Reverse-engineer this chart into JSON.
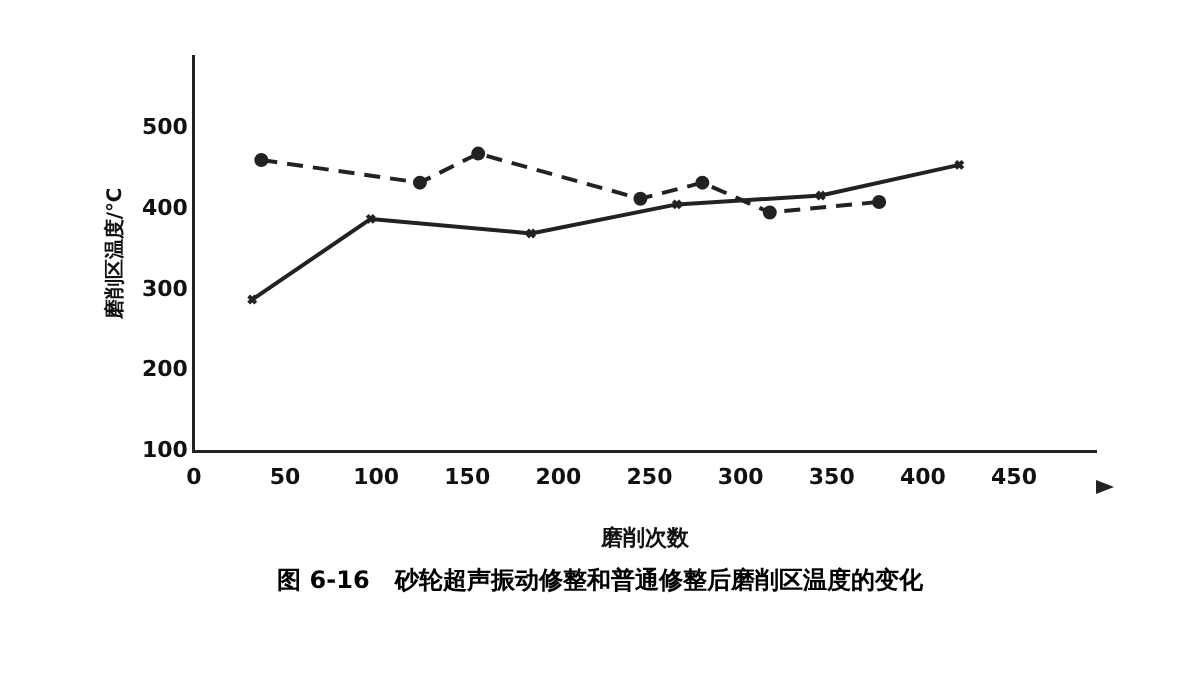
{
  "chart_data": {
    "type": "line",
    "xlabel": "磨削次数",
    "ylabel": "磨削区温度/℃",
    "annotations": [
      "图 6-16   砂轮超声振动修整和普通修整后磨削区温度的变化"
    ],
    "xlim": [
      0,
      495
    ],
    "xticks": [
      0,
      50,
      100,
      150,
      200,
      250,
      300,
      350,
      400,
      450
    ],
    "ylim": [
      100,
      590
    ],
    "yticks": [
      100,
      200,
      300,
      400,
      500
    ],
    "grid": false,
    "legend": false,
    "series": [
      {
        "color": "#222222",
        "marker": "cross",
        "line_style": "solid",
        "x": [
          32,
          97,
          185,
          265,
          344,
          420
        ],
        "values": [
          288,
          388,
          370,
          406,
          417,
          455
        ]
      },
      {
        "color": "#222222",
        "marker": "circle",
        "line_style": "dashed",
        "x": [
          37,
          124,
          156,
          245,
          279,
          316,
          376
        ],
        "values": [
          461,
          433,
          469,
          413,
          433,
          396,
          409
        ]
      }
    ]
  }
}
